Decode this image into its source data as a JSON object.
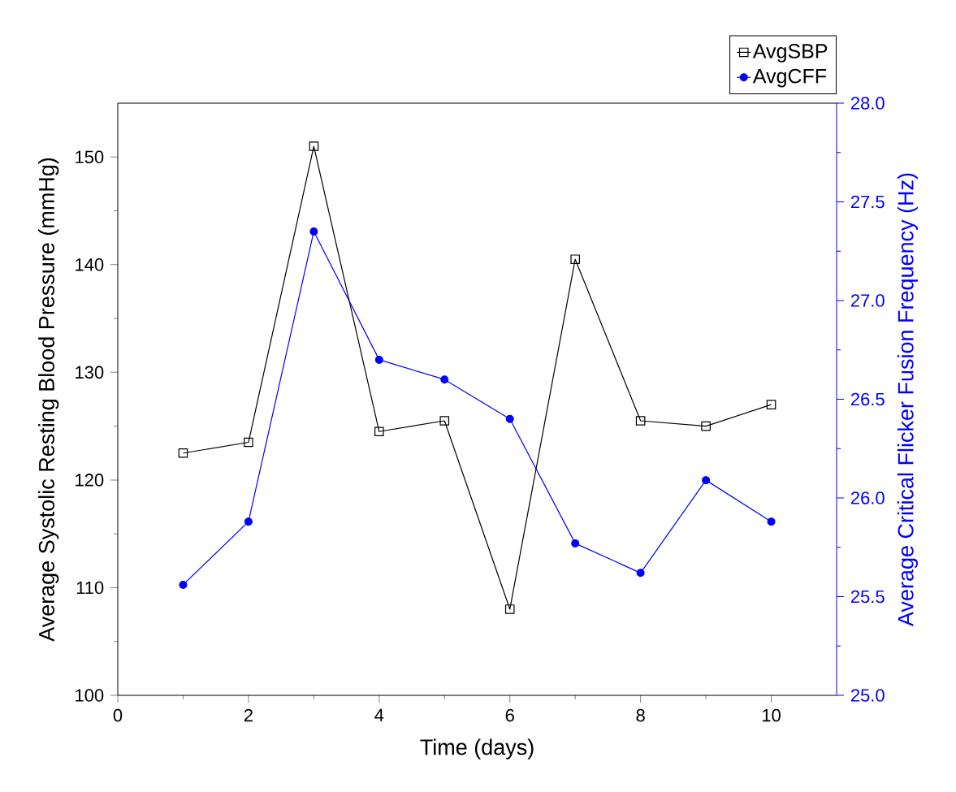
{
  "chart_data": {
    "type": "line",
    "xlabel": "Time (days)",
    "ylabel": "Average Systolic Resting Blood Pressure (mmHg)",
    "y2label": "Average Critical Flicker Fusion Frequency (Hz)",
    "x": [
      1,
      2,
      3,
      4,
      5,
      6,
      7,
      8,
      9,
      10
    ],
    "series": [
      {
        "name": "AvgSBP",
        "color": "#000000",
        "marker": "square",
        "values": [
          122.5,
          123.5,
          151,
          124.5,
          125.5,
          108,
          140.5,
          125.5,
          125,
          127
        ]
      },
      {
        "name": "AvgCFF",
        "color": "#0000ff",
        "marker": "circle",
        "axis": "y2",
        "values": [
          25.56,
          25.88,
          27.35,
          26.7,
          26.6,
          26.4,
          25.77,
          25.62,
          26.09,
          25.88
        ]
      }
    ],
    "xlim": [
      0,
      11
    ],
    "xticks": [
      0,
      2,
      4,
      6,
      8,
      10
    ],
    "ylim": [
      100,
      155
    ],
    "yticks": [
      100,
      110,
      120,
      130,
      140,
      150
    ],
    "y2lim": [
      25,
      28
    ],
    "y2ticks": [
      {
        "value": 25,
        "label": "25.0"
      },
      {
        "value": 25.5,
        "label": "25.5"
      },
      {
        "value": 26,
        "label": "26.0"
      },
      {
        "value": 26.5,
        "label": "26.5"
      },
      {
        "value": 27,
        "label": "27.0"
      },
      {
        "value": 27.5,
        "label": "27.5"
      },
      {
        "value": 28,
        "label": "28.0"
      }
    ],
    "legend": "top right",
    "grid": false,
    "line_style": "solid"
  }
}
